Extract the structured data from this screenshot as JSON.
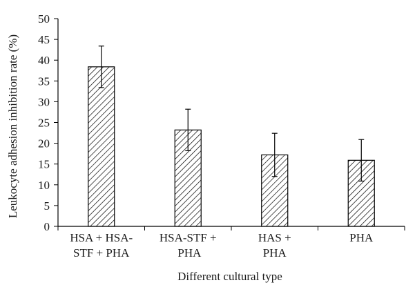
{
  "chart_data": {
    "type": "bar",
    "categories": [
      [
        "HSA + HSA-",
        "STF + PHA"
      ],
      [
        "HSA-STF +",
        " PHA"
      ],
      [
        "HAS +",
        "PHA"
      ],
      [
        "PHA"
      ]
    ],
    "values": [
      38.4,
      23.2,
      17.2,
      15.9
    ],
    "errors": [
      5.0,
      5.0,
      5.2,
      5.0
    ],
    "xlabel": "Different cultural type",
    "ylabel": "Leukocyte adhesion inhibition rate (%)",
    "ylim": [
      0,
      50
    ],
    "yticks": [
      0,
      5,
      10,
      15,
      20,
      25,
      30,
      35,
      40,
      45,
      50
    ],
    "grid": false,
    "bar_fill": "hatched",
    "colors": {
      "bar_stroke": "#000000",
      "hatch": "#000000",
      "background": "#ffffff"
    }
  }
}
